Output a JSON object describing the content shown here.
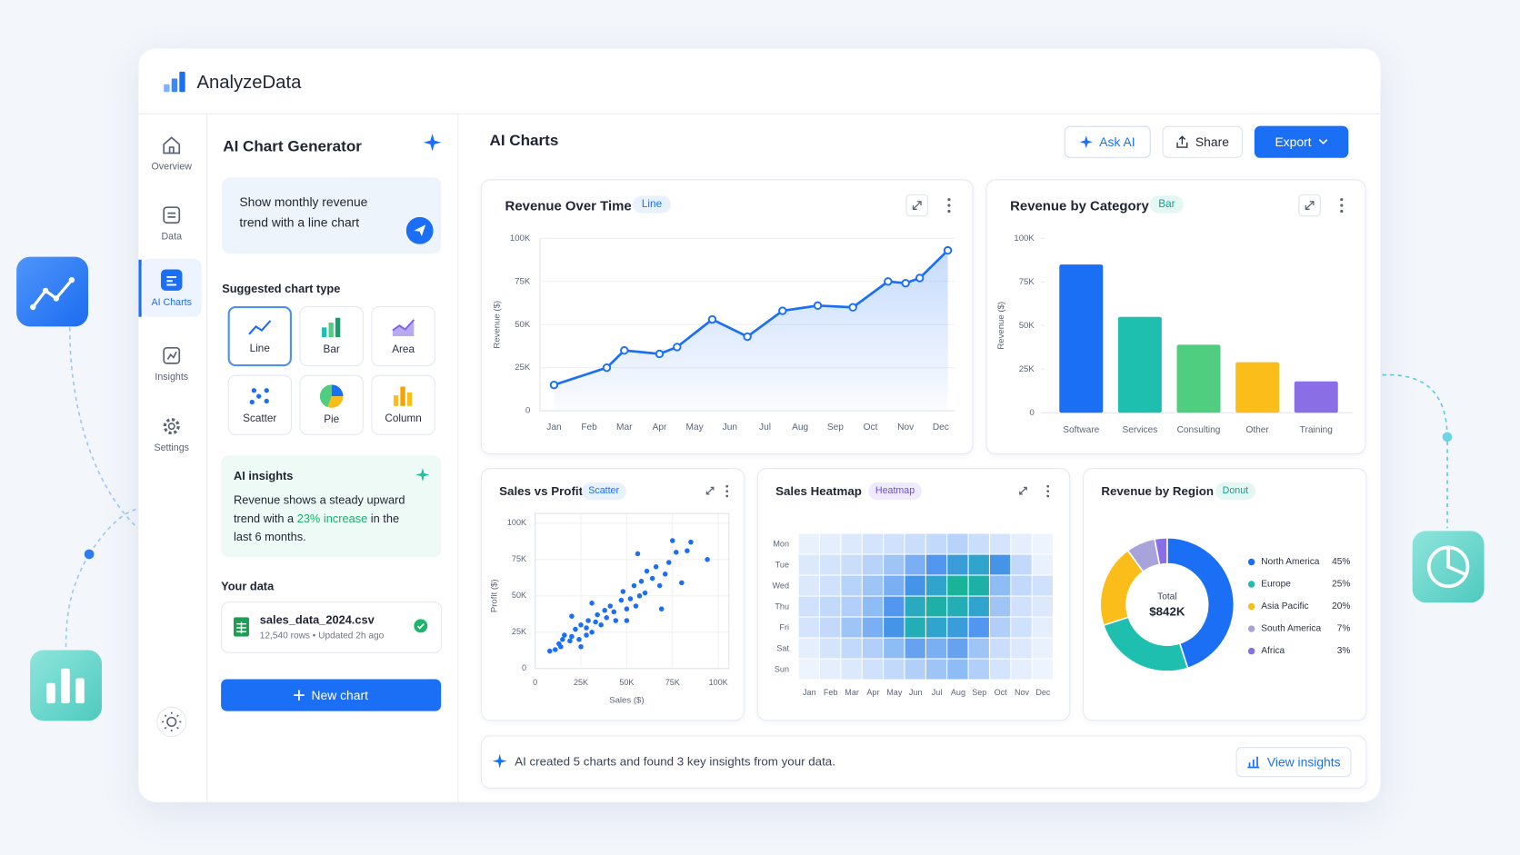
{
  "app": {
    "name": "AnalyzeData"
  },
  "sidebar": {
    "items": [
      "Overview",
      "Data",
      "AI Charts",
      "Insights",
      "Settings"
    ]
  },
  "generator": {
    "title": "AI Chart Generator",
    "prompt": "Show monthly revenue trend with a line chart",
    "suggested_label": "Suggested chart type",
    "chart_types": [
      "Line",
      "Bar",
      "Area",
      "Scatter",
      "Pie",
      "Column"
    ],
    "insights": {
      "title": "AI insights",
      "text_before": "Revenue shows a steady upward trend with a ",
      "highlight": "23% increase",
      "text_after": " in the last 6 months."
    },
    "your_data_label": "Your data",
    "file": {
      "name": "sales_data_2024.csv",
      "meta": "12,540 rows • Updated 2h ago"
    },
    "new_chart": "New chart"
  },
  "header": {
    "title": "AI Charts",
    "buttons": [
      "Ask AI",
      "Share",
      "Export"
    ]
  },
  "chart_data": [
    {
      "type": "line",
      "title": "Revenue Over Time",
      "tag": "Line",
      "color": "#1a6ff5",
      "grid": true,
      "y_label": "Revenue ($)",
      "x": [
        1,
        2.5,
        3,
        4,
        4.5,
        5.5,
        6.5,
        7.5,
        8.5,
        9.5,
        10.5,
        11,
        11.4,
        12.2
      ],
      "values": [
        15000,
        25000,
        35000,
        33000,
        37000,
        53000,
        43000,
        58000,
        61000,
        60000,
        75000,
        74000,
        77000,
        93000
      ],
      "xlim": [
        0.6,
        12.4
      ],
      "xticks": [
        {
          "value": 1,
          "label": "Jan"
        },
        {
          "value": 2,
          "label": "Feb"
        },
        {
          "value": 3,
          "label": "Mar"
        },
        {
          "value": 4,
          "label": "Apr"
        },
        {
          "value": 5,
          "label": "May"
        },
        {
          "value": 6,
          "label": "Jun"
        },
        {
          "value": 7,
          "label": "Jul"
        },
        {
          "value": 8,
          "label": "Aug"
        },
        {
          "value": 9,
          "label": "Sep"
        },
        {
          "value": 10,
          "label": "Oct"
        },
        {
          "value": 11,
          "label": "Nov"
        },
        {
          "value": 12,
          "label": "Dec"
        }
      ],
      "ylim": [
        0,
        100000
      ],
      "yticks": [
        0,
        {
          "value": 25000,
          "label": "25K"
        },
        {
          "value": 50000,
          "label": "50K"
        },
        {
          "value": 75000,
          "label": "75K"
        },
        {
          "value": 100000,
          "label": "100K"
        }
      ]
    },
    {
      "type": "bar",
      "title": "Revenue by Category",
      "tag": "Bar",
      "grid": false,
      "y_label": "Revenue ($)",
      "categories": [
        "Software",
        "Services",
        "Consulting",
        "Other",
        "Training"
      ],
      "values": [
        85000,
        55000,
        39000,
        29000,
        18000
      ],
      "colors": [
        "#1a6ff5",
        "#1fbfb0",
        "#4fce7f",
        "#fbbd1a",
        "#8a6ee6"
      ],
      "ylim": [
        0,
        100000
      ],
      "yticks": [
        0,
        {
          "value": 25000,
          "label": "25K"
        },
        {
          "value": 50000,
          "label": "50K"
        },
        {
          "value": 75000,
          "label": "75K"
        },
        {
          "value": 100000,
          "label": "100K"
        }
      ]
    },
    {
      "type": "scatter",
      "title": "Sales vs Profit",
      "tag": "Scatter",
      "color": "#1a6ff5",
      "grid": true,
      "x_label": "Sales ($)",
      "y_label": "Profit ($)",
      "x": [
        11000,
        13000,
        15000,
        16000,
        14000,
        19000,
        20000,
        22000,
        24000,
        25000,
        28000,
        29000,
        28000,
        31000,
        33000,
        34000,
        36000,
        38000,
        39000,
        41000,
        43000,
        44000,
        47000,
        48000,
        50000,
        52000,
        54000,
        55000,
        57000,
        58000,
        60000,
        61000,
        64000,
        66000,
        68000,
        69000,
        71000,
        73000,
        75000,
        77000,
        80000,
        83000,
        85000,
        94000,
        56000,
        20000,
        31000,
        50000,
        25000,
        8000
      ],
      "values": [
        13000,
        17000,
        20000,
        23000,
        15000,
        19000,
        22000,
        27000,
        20000,
        30000,
        28000,
        33000,
        23000,
        25000,
        32000,
        37000,
        30000,
        40000,
        35000,
        43000,
        39000,
        33000,
        47000,
        53000,
        41000,
        48000,
        57000,
        43000,
        50000,
        60000,
        52000,
        67000,
        62000,
        70000,
        57000,
        41000,
        65000,
        73000,
        88000,
        80000,
        59000,
        81000,
        87000,
        75000,
        79000,
        36000,
        45000,
        33000,
        15000,
        12000
      ],
      "xlim": [
        0,
        100000
      ],
      "xticks": [
        0,
        {
          "value": 25000,
          "label": "25K"
        },
        {
          "value": 50000,
          "label": "50K"
        },
        {
          "value": 75000,
          "label": "75K"
        },
        {
          "value": 100000,
          "label": "100K"
        }
      ],
      "ylim": [
        0,
        100000
      ],
      "yticks": [
        0,
        {
          "value": 25000,
          "label": "25K"
        },
        {
          "value": 50000,
          "label": "50K"
        },
        {
          "value": 75000,
          "label": "75K"
        },
        {
          "value": 100000,
          "label": "100K"
        }
      ]
    },
    {
      "type": "heatmap",
      "title": "Sales Heatmap",
      "tag": "Heatmap",
      "categories": [
        "Jan",
        "Feb",
        "Mar",
        "Apr",
        "May",
        "Jun",
        "Jul",
        "Aug",
        "Sep",
        "Oct",
        "Nov",
        "Dec"
      ],
      "rows": [
        "Mon",
        "Tue",
        "Wed",
        "Thu",
        "Fri",
        "Sat",
        "Sun"
      ],
      "colors": [
        "#eef4fd",
        "#c4dafb",
        "#8bbaf5",
        "#4a90ee",
        "#2aa9c4",
        "#19b39a"
      ],
      "values": [
        [
          10,
          12,
          15,
          18,
          20,
          22,
          25,
          28,
          22,
          18,
          12,
          8
        ],
        [
          15,
          18,
          22,
          28,
          35,
          45,
          55,
          65,
          70,
          60,
          25,
          10
        ],
        [
          15,
          20,
          28,
          35,
          45,
          60,
          70,
          90,
          85,
          40,
          25,
          20
        ],
        [
          20,
          25,
          30,
          40,
          55,
          75,
          85,
          80,
          70,
          35,
          20,
          15
        ],
        [
          18,
          25,
          35,
          45,
          60,
          80,
          70,
          65,
          55,
          30,
          20,
          12
        ],
        [
          12,
          18,
          25,
          30,
          40,
          50,
          45,
          50,
          35,
          22,
          15,
          10
        ],
        [
          8,
          12,
          15,
          20,
          25,
          30,
          35,
          40,
          30,
          18,
          12,
          8
        ]
      ]
    },
    {
      "type": "donut",
      "title": "Revenue by Region",
      "tag": "Donut",
      "center_label": "Total",
      "center_value": "$842K",
      "categories": [
        "North America",
        "Europe",
        "Asia Pacific",
        "South America",
        "Africa"
      ],
      "values": [
        45,
        25,
        20,
        7,
        3
      ],
      "value_labels": [
        "45%",
        "25%",
        "20%",
        "7%",
        "3%"
      ],
      "colors": [
        "#1a6ff5",
        "#1fbfb0",
        "#fbbd1a",
        "#a9a3dc",
        "#8a6ee6"
      ]
    }
  ],
  "footer": {
    "message": "AI created 5 charts and found 3 key insights from your data.",
    "button": "View insights"
  }
}
